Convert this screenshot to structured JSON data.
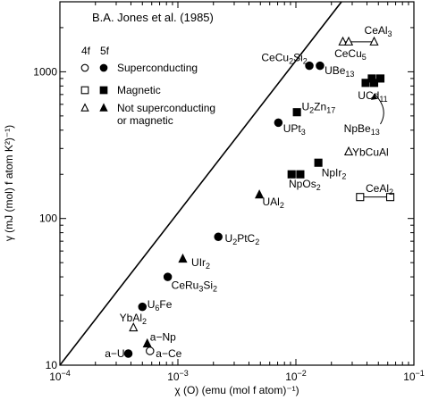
{
  "chart_data": {
    "type": "scatter",
    "title": "B.A. Jones et al. (1985)",
    "xlabel": "χ (O) (emu (mol f atom)⁻¹)",
    "ylabel": "γ (mJ (mol) f atom K²)⁻¹)",
    "x_scale": "log",
    "y_scale": "log",
    "xlim": [
      0.0001,
      0.1
    ],
    "ylim": [
      10,
      3000
    ],
    "x_ticks": [
      {
        "value": 0.0001,
        "base": "10",
        "exp": "−4"
      },
      {
        "value": 0.001,
        "base": "10",
        "exp": "−3"
      },
      {
        "value": 0.01,
        "base": "10",
        "exp": "−2"
      },
      {
        "value": 0.1,
        "base": "10",
        "exp": "−1"
      }
    ],
    "y_ticks": [
      {
        "value": 10,
        "label": "10"
      },
      {
        "value": 100,
        "label": "100"
      },
      {
        "value": 1000,
        "label": "1000"
      }
    ],
    "legend": {
      "header_4f": "4f",
      "header_5f": "5f",
      "entries": [
        {
          "label": "Superconducting",
          "marker": "circle"
        },
        {
          "label": "Magnetic",
          "marker": "square"
        },
        {
          "label": "Not superconducting",
          "label2": "or magnetic",
          "marker": "triangle"
        }
      ]
    },
    "reference_line": [
      [
        0.0001,
        10
      ],
      [
        0.1,
        13000
      ]
    ],
    "points": [
      {
        "marker": "circle",
        "filled": true,
        "x": 0.00038,
        "y": 12
      },
      {
        "marker": "circle",
        "filled": false,
        "x": 0.00058,
        "y": 12.5
      },
      {
        "marker": "circle",
        "filled": true,
        "x": 0.0005,
        "y": 25
      },
      {
        "marker": "circle",
        "filled": true,
        "x": 0.00082,
        "y": 40
      },
      {
        "marker": "circle",
        "filled": true,
        "x": 0.0022,
        "y": 75
      },
      {
        "marker": "circle",
        "filled": true,
        "x": 0.0071,
        "y": 450
      },
      {
        "marker": "circle",
        "filled": true,
        "x": 0.013,
        "y": 1100
      },
      {
        "marker": "circle",
        "filled": true,
        "x": 0.016,
        "y": 1100
      },
      {
        "marker": "triangle",
        "filled": false,
        "x": 0.00042,
        "y": 18
      },
      {
        "marker": "triangle",
        "filled": true,
        "x": 0.00055,
        "y": 14
      },
      {
        "marker": "triangle",
        "filled": true,
        "x": 0.0011,
        "y": 53
      },
      {
        "marker": "triangle",
        "filled": true,
        "x": 0.0049,
        "y": 145
      },
      {
        "marker": "triangle",
        "filled": false,
        "x": 0.028,
        "y": 285
      },
      {
        "marker": "triangle",
        "filled": false,
        "x": 0.025,
        "y": 1600
      },
      {
        "marker": "triangle",
        "filled": false,
        "x": 0.028,
        "y": 1600
      },
      {
        "marker": "triangle",
        "filled": false,
        "x": 0.046,
        "y": 1600
      },
      {
        "marker": "square",
        "filled": true,
        "x": 0.0102,
        "y": 530
      },
      {
        "marker": "square",
        "filled": true,
        "x": 0.0092,
        "y": 200
      },
      {
        "marker": "square",
        "filled": true,
        "x": 0.0109,
        "y": 200
      },
      {
        "marker": "square",
        "filled": true,
        "x": 0.0155,
        "y": 240
      },
      {
        "marker": "square",
        "filled": true,
        "x": 0.039,
        "y": 840
      },
      {
        "marker": "square",
        "filled": true,
        "x": 0.046,
        "y": 840
      },
      {
        "marker": "square",
        "filled": true,
        "x": 0.044,
        "y": 900
      },
      {
        "marker": "square",
        "filled": true,
        "x": 0.052,
        "y": 900
      },
      {
        "marker": "square",
        "filled": false,
        "x": 0.035,
        "y": 140
      },
      {
        "marker": "square",
        "filled": false,
        "x": 0.063,
        "y": 140
      }
    ],
    "connectors": [
      [
        [
          0.025,
          1600
        ],
        [
          0.028,
          1600
        ],
        [
          0.046,
          1600
        ]
      ],
      [
        [
          0.035,
          140
        ],
        [
          0.063,
          140
        ]
      ]
    ],
    "labels": [
      {
        "parts": [
          [
            "a−U",
            ""
          ]
        ],
        "x": 0.00024,
        "y": 12
      },
      {
        "parts": [
          [
            "a−Ce",
            ""
          ]
        ],
        "x": 0.00065,
        "y": 12
      },
      {
        "parts": [
          [
            "a−Np",
            ""
          ]
        ],
        "x": 0.00058,
        "y": 15.5
      },
      {
        "parts": [
          [
            "YbAl",
            ""
          ],
          [
            "2",
            "sub"
          ]
        ],
        "x": 0.00032,
        "y": 21
      },
      {
        "parts": [
          [
            "U",
            ""
          ],
          [
            "6",
            "sub"
          ],
          [
            "Fe",
            ""
          ]
        ],
        "x": 0.00055,
        "y": 26
      },
      {
        "parts": [
          [
            "CeRu",
            ""
          ],
          [
            "3",
            "sub"
          ],
          [
            "Si",
            ""
          ],
          [
            "2",
            "sub"
          ]
        ],
        "x": 0.00088,
        "y": 35
      },
      {
        "parts": [
          [
            "UIr",
            ""
          ],
          [
            "2",
            "sub"
          ]
        ],
        "x": 0.0013,
        "y": 50
      },
      {
        "parts": [
          [
            "U",
            ""
          ],
          [
            "2",
            "sub"
          ],
          [
            "PtC",
            ""
          ],
          [
            "2",
            "sub"
          ]
        ],
        "x": 0.0025,
        "y": 73
      },
      {
        "parts": [
          [
            "UAl",
            ""
          ],
          [
            "2",
            "sub"
          ]
        ],
        "x": 0.0052,
        "y": 130
      },
      {
        "parts": [
          [
            "NpOs",
            ""
          ],
          [
            "2",
            "sub"
          ]
        ],
        "x": 0.0087,
        "y": 172
      },
      {
        "parts": [
          [
            "NpIr",
            ""
          ],
          [
            "2",
            "sub"
          ]
        ],
        "x": 0.0165,
        "y": 205
      },
      {
        "parts": [
          [
            "YbCuAl",
            ""
          ]
        ],
        "x": 0.03,
        "y": 282
      },
      {
        "parts": [
          [
            "CeAl",
            ""
          ],
          [
            "2",
            "sub"
          ]
        ],
        "x": 0.039,
        "y": 160
      },
      {
        "parts": [
          [
            "UPt",
            ""
          ],
          [
            "3",
            "sub"
          ]
        ],
        "x": 0.0078,
        "y": 410
      },
      {
        "parts": [
          [
            "U",
            ""
          ],
          [
            "2",
            "sub"
          ],
          [
            "Zn",
            ""
          ],
          [
            "17",
            "sub"
          ]
        ],
        "x": 0.0112,
        "y": 580
      },
      {
        "parts": [
          [
            "CeCu",
            ""
          ],
          [
            "2",
            "sub"
          ],
          [
            "Si",
            ""
          ],
          [
            "2",
            "sub"
          ]
        ],
        "x": 0.0051,
        "y": 1250
      },
      {
        "parts": [
          [
            "UBe",
            ""
          ],
          [
            "13",
            "sub"
          ]
        ],
        "x": 0.0175,
        "y": 1020
      },
      {
        "parts": [
          [
            "CeCu",
            ""
          ],
          [
            "5",
            "sub"
          ]
        ],
        "x": 0.0212,
        "y": 1330
      },
      {
        "parts": [
          [
            "CeAl",
            ""
          ],
          [
            "3",
            "sub"
          ]
        ],
        "x": 0.038,
        "y": 1920
      },
      {
        "parts": [
          [
            "UCd",
            ""
          ],
          [
            "11",
            "sub"
          ]
        ],
        "x": 0.0335,
        "y": 690
      },
      {
        "parts": [
          [
            "NpBe",
            ""
          ],
          [
            "13",
            "sub"
          ]
        ],
        "x": 0.0255,
        "y": 410
      }
    ],
    "arrow": {
      "from": [
        0.052,
        440
      ],
      "to": [
        0.046,
        710
      ]
    }
  }
}
